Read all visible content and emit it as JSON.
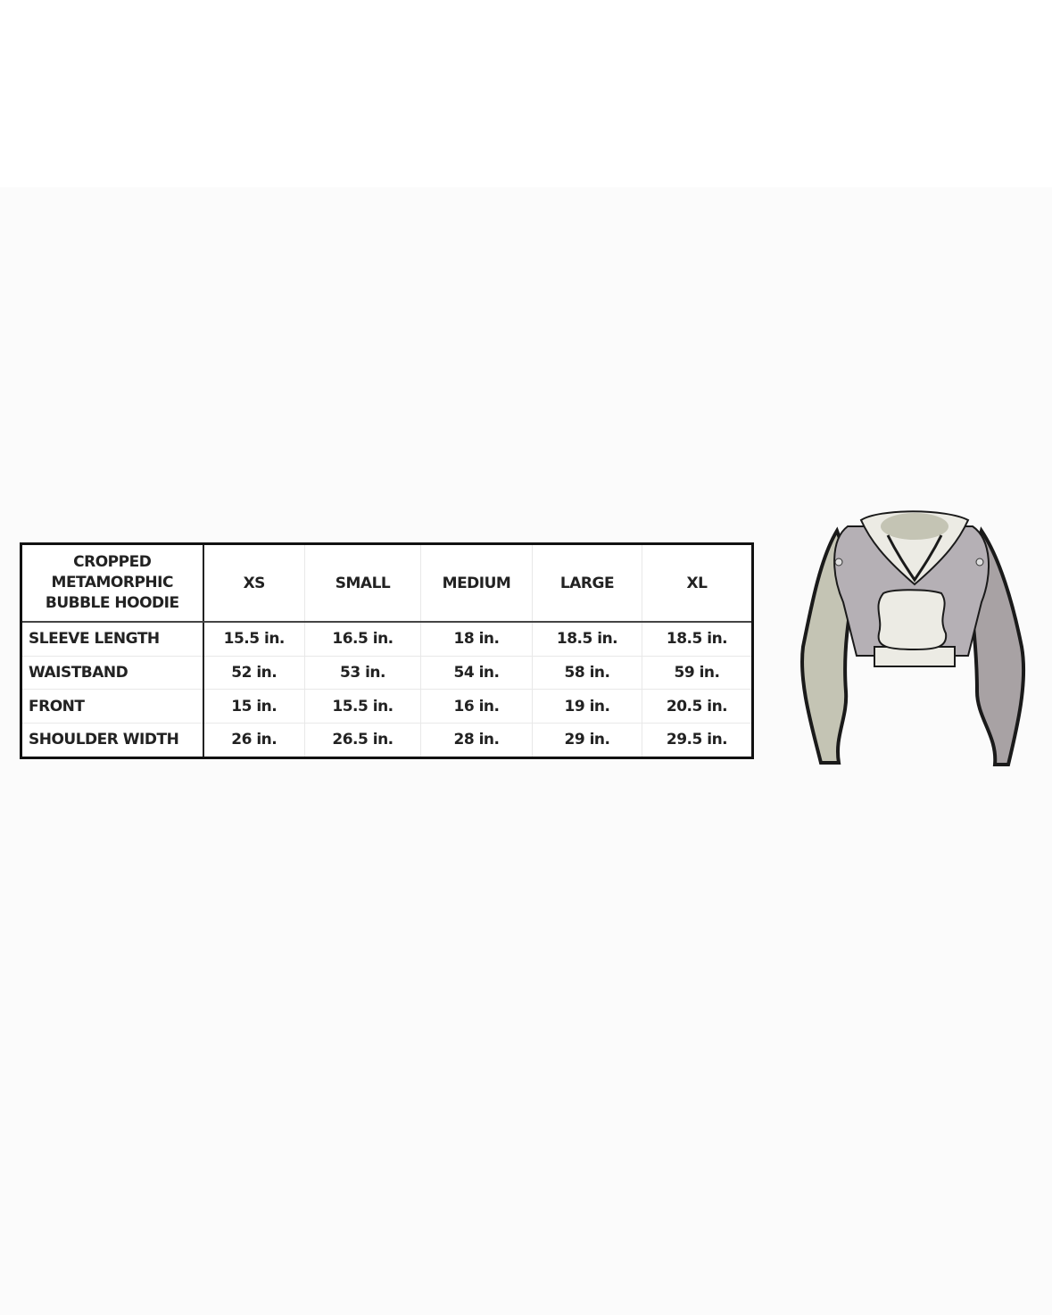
{
  "product_title": "CROPPED METAMORPHIC BUBBLE HOODIE",
  "title_lines": [
    "CROPPED",
    "METAMORPHIC",
    "BUBBLE HOODIE"
  ],
  "sizes": [
    "XS",
    "SMALL",
    "MEDIUM",
    "LARGE",
    "XL"
  ],
  "rows": [
    {
      "label": "SLEEVE LENGTH",
      "values": [
        "15.5 in.",
        "16.5 in.",
        "18 in.",
        "18.5 in.",
        "18.5 in."
      ]
    },
    {
      "label": "WAISTBAND",
      "values": [
        "52 in.",
        "53 in.",
        "54 in.",
        "58 in.",
        "59 in."
      ]
    },
    {
      "label": "FRONT",
      "values": [
        "15 in.",
        "15.5 in.",
        "16 in.",
        "19 in.",
        "20.5 in."
      ]
    },
    {
      "label": "SHOULDER WIDTH",
      "values": [
        "26 in.",
        "26.5 in.",
        "28 in.",
        "29 in.",
        "29.5 in."
      ]
    }
  ],
  "illustration": "hoodie-illustration",
  "colors": {
    "body": "#b5b0b5",
    "panel": "#ecebe4",
    "sleeve": "#c4c4b4",
    "outline": "#1a1a1a"
  }
}
